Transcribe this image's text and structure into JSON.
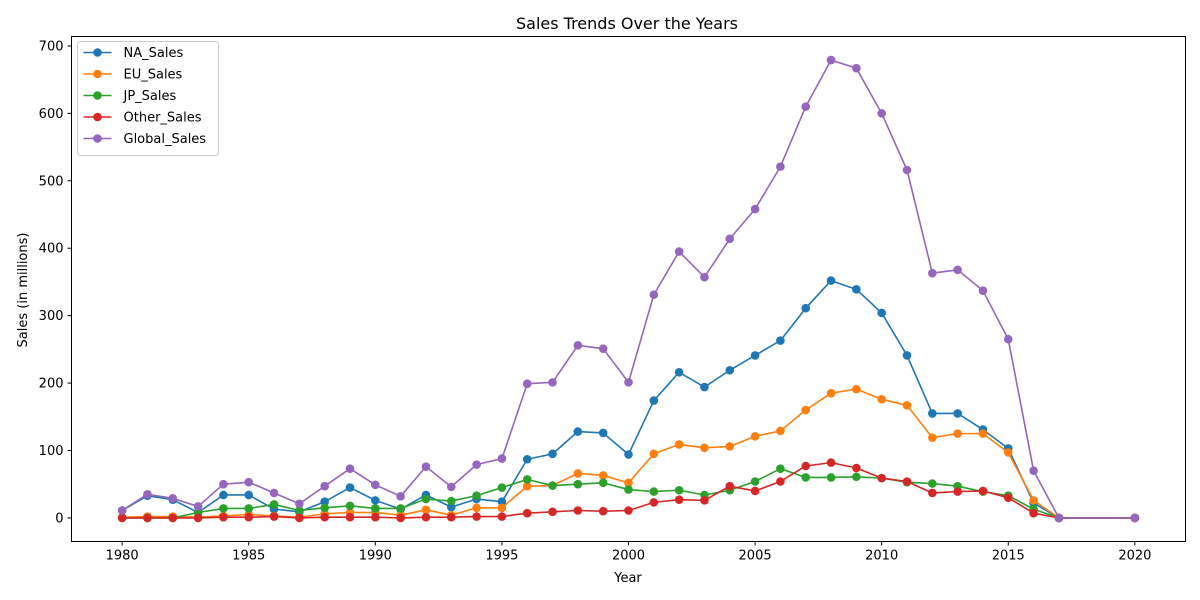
{
  "chart_data": {
    "type": "line",
    "title": "Sales Trends Over the Years",
    "xlabel": "Year",
    "ylabel": "Sales (in millions)",
    "xlim": [
      1978,
      2022
    ],
    "ylim": [
      -35,
      714
    ],
    "xticks": [
      1980,
      1985,
      1990,
      1995,
      2000,
      2005,
      2010,
      2015,
      2020
    ],
    "yticks": [
      0,
      100,
      200,
      300,
      400,
      500,
      600,
      700
    ],
    "grid": false,
    "legend_position": "top-left",
    "x": [
      1980,
      1981,
      1982,
      1983,
      1984,
      1985,
      1986,
      1987,
      1988,
      1989,
      1990,
      1991,
      1992,
      1993,
      1994,
      1995,
      1996,
      1997,
      1998,
      1999,
      2000,
      2001,
      2002,
      2003,
      2004,
      2005,
      2006,
      2007,
      2008,
      2009,
      2010,
      2011,
      2012,
      2013,
      2014,
      2015,
      2016,
      2017,
      2020
    ],
    "series": [
      {
        "name": "NA_Sales",
        "color": "#1f77b4",
        "values": [
          11,
          33,
          27,
          8,
          34,
          34,
          13,
          9,
          24,
          45,
          26,
          13,
          34,
          16,
          28,
          24,
          87,
          95,
          128,
          126,
          94,
          174,
          216,
          194,
          219,
          241,
          263,
          311,
          352,
          339,
          304,
          241,
          155,
          155,
          131,
          103,
          22,
          0,
          0
        ]
      },
      {
        "name": "EU_Sales",
        "color": "#ff7f0e",
        "values": [
          1,
          2,
          2,
          1,
          3,
          5,
          3,
          1,
          6,
          8,
          8,
          4,
          12,
          4,
          15,
          15,
          47,
          48,
          66,
          63,
          52,
          95,
          109,
          104,
          106,
          121,
          129,
          160,
          185,
          191,
          176,
          167,
          119,
          125,
          125,
          97,
          26,
          0,
          0
        ]
      },
      {
        "name": "JP_Sales",
        "color": "#2ca02c",
        "values": [
          0,
          0,
          0,
          8,
          14,
          14,
          20,
          11,
          15,
          18,
          14,
          14,
          28,
          25,
          33,
          45,
          57,
          48,
          50,
          52,
          42,
          39,
          41,
          34,
          41,
          54,
          73,
          60,
          60,
          61,
          59,
          53,
          51,
          47,
          39,
          33,
          13,
          0,
          0
        ]
      },
      {
        "name": "Other_Sales",
        "color": "#d62728",
        "values": [
          0,
          0,
          0,
          0,
          1,
          1,
          2,
          0,
          1,
          1,
          1,
          0,
          1,
          1,
          2,
          2,
          7,
          9,
          11,
          10,
          11,
          23,
          27,
          26,
          47,
          40,
          54,
          77,
          82,
          74,
          59,
          54,
          37,
          39,
          40,
          30,
          7,
          0,
          0
        ]
      },
      {
        "name": "Global_Sales",
        "color": "#9467bd",
        "values": [
          11,
          35,
          29,
          17,
          50,
          53,
          37,
          21,
          47,
          73,
          49,
          32,
          76,
          46,
          79,
          88,
          199,
          201,
          256,
          251,
          201,
          331,
          395,
          357,
          414,
          458,
          521,
          610,
          679,
          667,
          600,
          516,
          363,
          368,
          337,
          265,
          70,
          0,
          0
        ]
      }
    ]
  }
}
